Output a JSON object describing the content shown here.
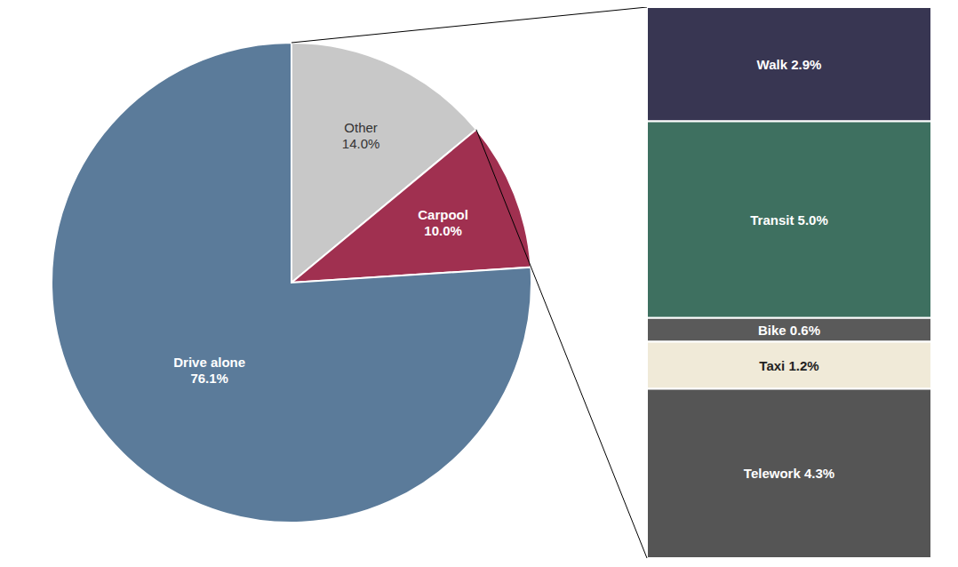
{
  "chart_data": [
    {
      "type": "pie",
      "categories": [
        "Other",
        "Carpool",
        "Drive alone"
      ],
      "values": [
        14.0,
        10.0,
        76.1
      ],
      "value_labels": [
        "14.0%",
        "10.0%",
        "76.1%"
      ],
      "colors": [
        "#c8c8c8",
        "#a03050",
        "#5b7b9a"
      ],
      "data_labels": true
    },
    {
      "type": "bar",
      "stacked": true,
      "categories": [
        null
      ],
      "tick_labels": false,
      "data_labels": true,
      "series": [
        {
          "name": "Walk",
          "color": "#383652",
          "values": [
            2.9
          ],
          "value_labels": [
            "2.9%"
          ]
        },
        {
          "name": "Transit",
          "color": "#3e7060",
          "values": [
            5.0
          ],
          "value_labels": [
            "5.0%"
          ]
        },
        {
          "name": "Bike",
          "color": "#5a5a5a",
          "values": [
            0.6
          ],
          "value_labels": [
            "0.6%"
          ]
        },
        {
          "name": "Taxi",
          "color": "#f0ead8",
          "values": [
            1.2
          ],
          "value_labels": [
            "1.2%"
          ]
        },
        {
          "name": "Telework",
          "color": "#555555",
          "values": [
            4.3
          ],
          "value_labels": [
            "4.3%"
          ]
        }
      ]
    }
  ]
}
